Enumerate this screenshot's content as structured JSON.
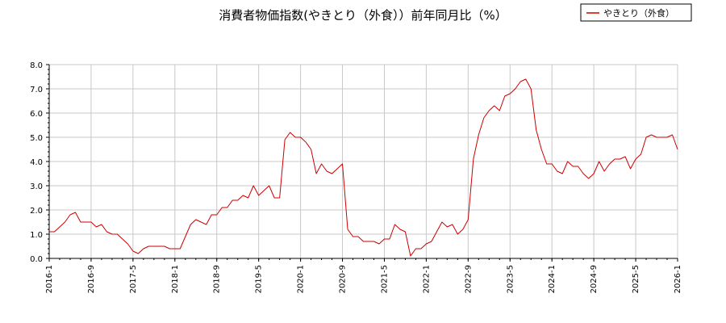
{
  "chart_data": {
    "type": "line",
    "title": "消費者物価指数(やきとり（外食））前年同月比（%）",
    "xlabel": "",
    "ylabel": "",
    "ylim": [
      0,
      8
    ],
    "yticks": [
      "0.0",
      "1.0",
      "2.0",
      "3.0",
      "4.0",
      "5.0",
      "6.0",
      "7.0",
      "8.0"
    ],
    "xticks": [
      "2016-1",
      "2016-9",
      "2017-5",
      "2018-1",
      "2018-9",
      "2019-5",
      "2020-1",
      "2020-9",
      "2021-5",
      "2022-1",
      "2022-9",
      "2023-5",
      "2024-1",
      "2024-9",
      "2025-5",
      "2026-1"
    ],
    "grid": true,
    "legend_position": "top-right",
    "colors": {
      "line": "#cc0000",
      "grid": "#c8c8c8",
      "axis": "#000000"
    },
    "series": [
      {
        "name": "やきとり（外食）",
        "x_start": "2016-01",
        "values": [
          1.1,
          1.1,
          1.3,
          1.5,
          1.8,
          1.9,
          1.5,
          1.5,
          1.5,
          1.3,
          1.4,
          1.1,
          1.0,
          1.0,
          0.8,
          0.6,
          0.3,
          0.2,
          0.4,
          0.5,
          0.5,
          0.5,
          0.5,
          0.4,
          0.4,
          0.4,
          0.9,
          1.4,
          1.6,
          1.5,
          1.4,
          1.8,
          1.8,
          2.1,
          2.1,
          2.4,
          2.4,
          2.6,
          2.5,
          3.0,
          2.6,
          2.8,
          3.0,
          2.5,
          2.5,
          4.9,
          5.2,
          5.0,
          5.0,
          4.8,
          4.5,
          3.5,
          3.9,
          3.6,
          3.5,
          3.7,
          3.9,
          1.2,
          0.9,
          0.9,
          0.7,
          0.7,
          0.7,
          0.6,
          0.8,
          0.8,
          1.4,
          1.2,
          1.1,
          0.1,
          0.4,
          0.4,
          0.6,
          0.7,
          1.1,
          1.5,
          1.3,
          1.4,
          1.0,
          1.2,
          1.6,
          4.1,
          5.1,
          5.8,
          6.1,
          6.3,
          6.1,
          6.7,
          6.8,
          7.0,
          7.3,
          7.4,
          7.0,
          5.3,
          4.5,
          3.9,
          3.9,
          3.6,
          3.5,
          4.0,
          3.8,
          3.8,
          3.5,
          3.3,
          3.5,
          4.0,
          3.6,
          3.9,
          4.1,
          4.1,
          4.2,
          3.7,
          4.1,
          4.3,
          5.0,
          5.1,
          5.0,
          5.0,
          5.0,
          5.1,
          4.5
        ]
      }
    ]
  }
}
